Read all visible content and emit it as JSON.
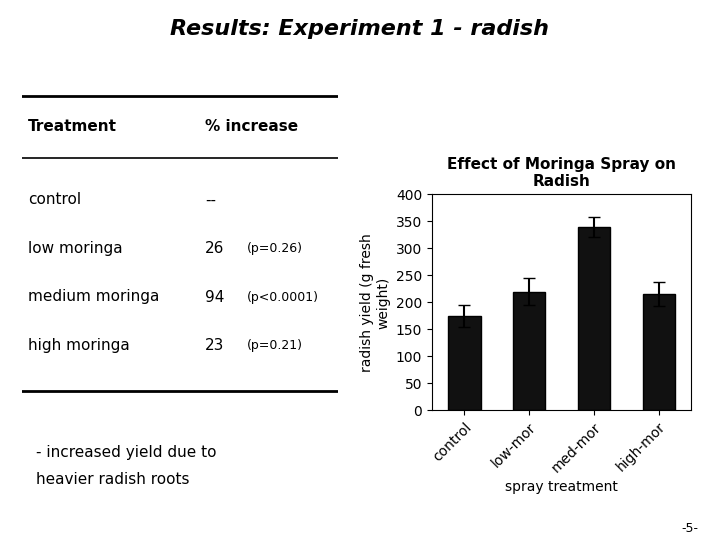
{
  "title": "Results: Experiment 1 - radish",
  "table": {
    "headers": [
      "Treatment",
      "% increase"
    ],
    "rows": [
      [
        "control",
        "--"
      ],
      [
        "low moringa",
        "26",
        "(p=0.26)"
      ],
      [
        "medium moringa",
        "94",
        "(p<0.0001)"
      ],
      [
        "high moringa",
        "23",
        "(p=0.21)"
      ]
    ]
  },
  "footnote": [
    "- increased yield due to",
    "heavier radish roots"
  ],
  "page_number": "-5-",
  "chart_data": {
    "type": "bar",
    "title": "Effect of Moringa Spray on\nRadish",
    "categories": [
      "control",
      "low-mor",
      "med-mor",
      "high-mor"
    ],
    "values": [
      175,
      220,
      340,
      215
    ],
    "errors": [
      20,
      25,
      18,
      22
    ],
    "color": "#111111",
    "xlabel": "spray treatment",
    "ylabel": "radish yield (g fresh\nweight)",
    "ylim": [
      0,
      400
    ],
    "yticks": [
      0,
      50,
      100,
      150,
      200,
      250,
      300,
      350,
      400
    ]
  }
}
